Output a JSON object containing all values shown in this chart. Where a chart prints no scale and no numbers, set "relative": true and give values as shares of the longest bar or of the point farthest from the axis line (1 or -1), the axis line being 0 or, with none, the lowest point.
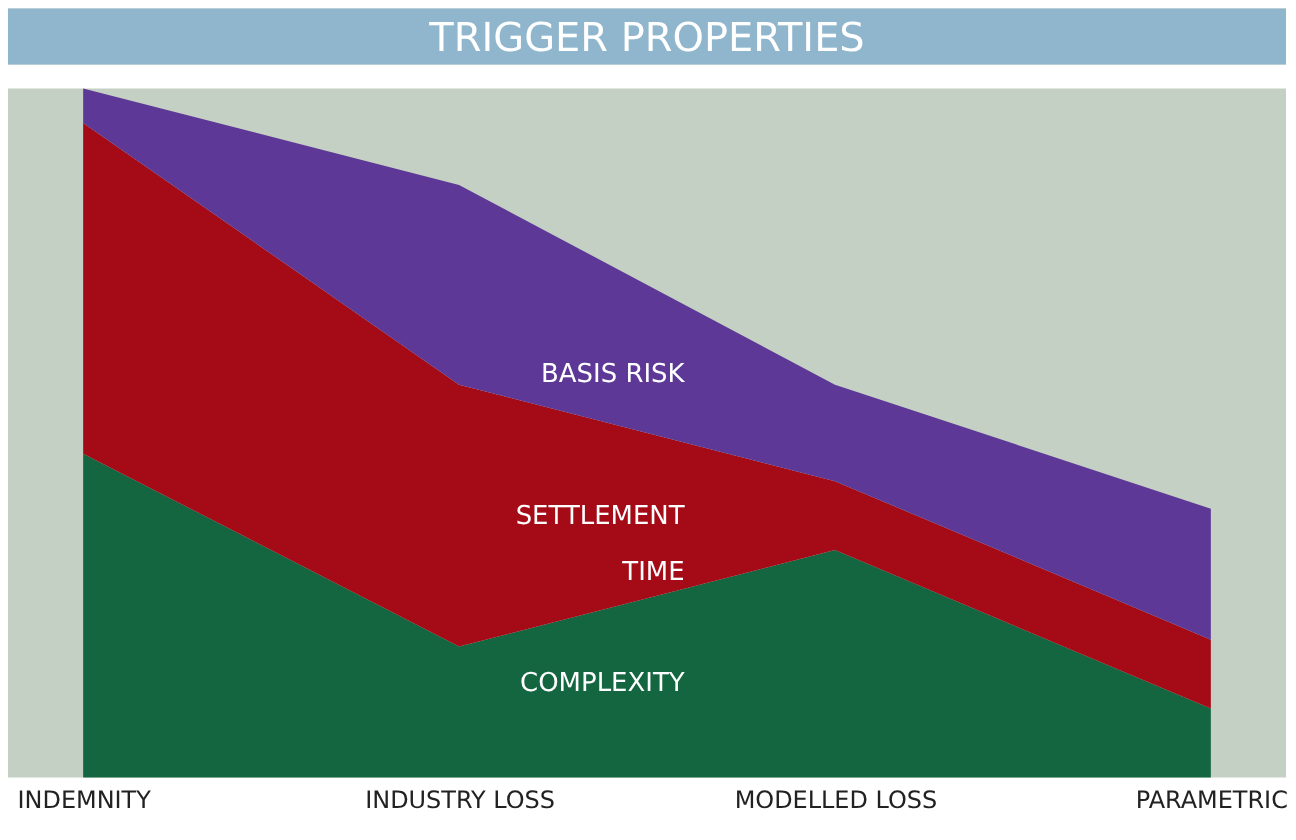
{
  "chart_data": {
    "type": "area",
    "title": "TRIGGER PROPERTIES",
    "relative": true,
    "stacked": true,
    "categories": [
      "INDEMNITY",
      "INDUSTRY LOSS",
      "MODELLED LOSS",
      "PARAMETRIC"
    ],
    "series": [
      {
        "name": "COMPLEXITY",
        "color": "#136640",
        "values": [
          0.47,
          0.19,
          0.33,
          0.1
        ]
      },
      {
        "name": "SETTLEMENT\nTIME",
        "color": "#a50a17",
        "values": [
          0.48,
          0.38,
          0.1,
          0.1
        ]
      },
      {
        "name": "BASIS RISK",
        "color": "#5e3896",
        "values": [
          0.05,
          0.29,
          0.14,
          0.19
        ]
      }
    ],
    "grid": false
  }
}
